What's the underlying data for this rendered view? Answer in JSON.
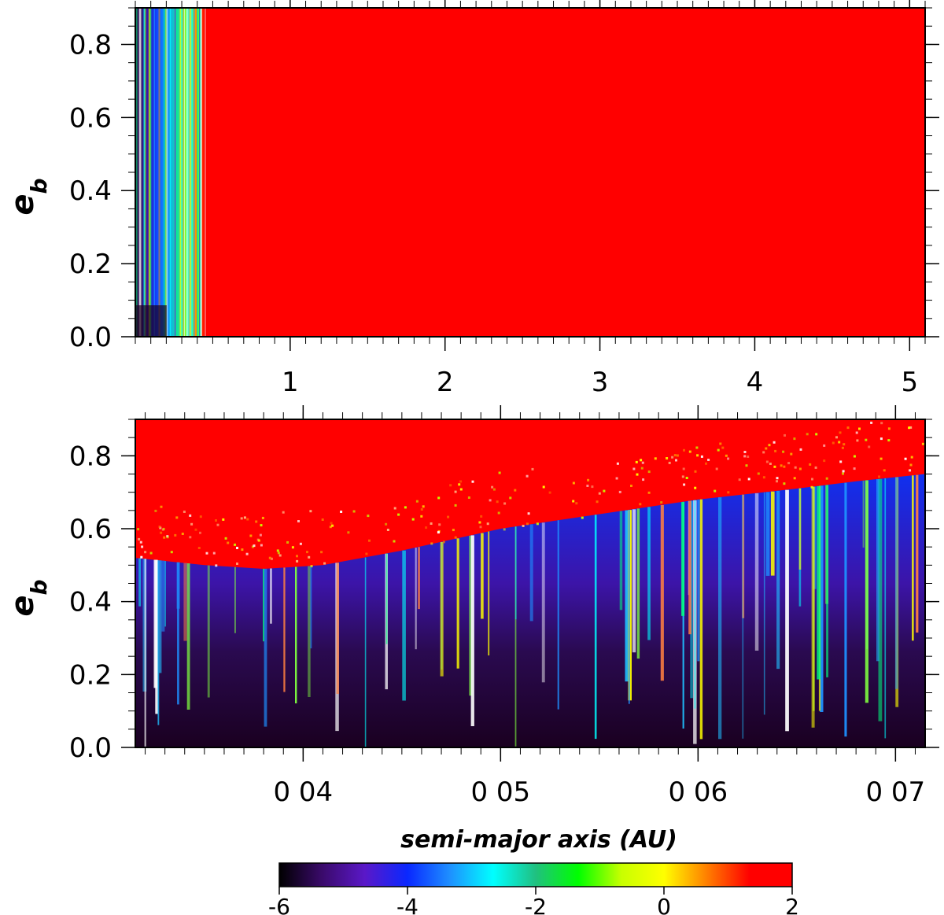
{
  "chart_data": [
    {
      "type": "heatmap",
      "panel": "top",
      "ylabel_main": "e",
      "ylabel_sub": "b",
      "xlim": [
        0,
        5.1
      ],
      "ylim": [
        0,
        0.9
      ],
      "xticks": [
        1,
        2,
        3,
        4,
        5
      ],
      "xtick_labels": [
        "1",
        "2",
        "3",
        "4",
        "5"
      ],
      "yticks": [
        0,
        0.2,
        0.4,
        0.6,
        0.8
      ],
      "ytick_labels": [
        "0.0",
        "0.2",
        "0.4",
        "0.6",
        "0.8"
      ],
      "description_values": {
        "stable_edge_a": 0.45,
        "saturated_value": 2
      }
    },
    {
      "type": "heatmap",
      "panel": "bottom",
      "ylabel_main": "e",
      "ylabel_sub": "b",
      "xlabel": "semi-major axis (AU)",
      "xlim": [
        0.0315,
        0.0715
      ],
      "ylim": [
        0,
        0.9
      ],
      "xticks": [
        0.04,
        0.05,
        0.06,
        0.07
      ],
      "xtick_labels": [
        "0 04",
        "0 05",
        "0 06",
        "0 07"
      ],
      "yticks": [
        0,
        0.2,
        0.4,
        0.6,
        0.8
      ],
      "ytick_labels": [
        "0.0",
        "0.2",
        "0.4",
        "0.6",
        "0.8"
      ],
      "boundary": {
        "a": [
          0.0315,
          0.035,
          0.038,
          0.041,
          0.045,
          0.05,
          0.055,
          0.06,
          0.065,
          0.068,
          0.0715
        ],
        "e": [
          0.52,
          0.5,
          0.49,
          0.5,
          0.54,
          0.6,
          0.64,
          0.68,
          0.71,
          0.73,
          0.75
        ]
      }
    }
  ],
  "colorbar": {
    "min": -6,
    "max": 2,
    "tick_values": [
      -6,
      -4,
      -2,
      0,
      2
    ],
    "tick_labels": [
      "-6",
      "-4",
      "-2",
      "0",
      "2"
    ],
    "colors": [
      "#000000",
      "#3a0a6a",
      "#5a18c8",
      "#0a28ff",
      "#1e90ff",
      "#00ffff",
      "#20c080",
      "#00ff00",
      "#c8ff00",
      "#ffff00",
      "#ff8000",
      "#ff0000",
      "#ff0000"
    ]
  }
}
